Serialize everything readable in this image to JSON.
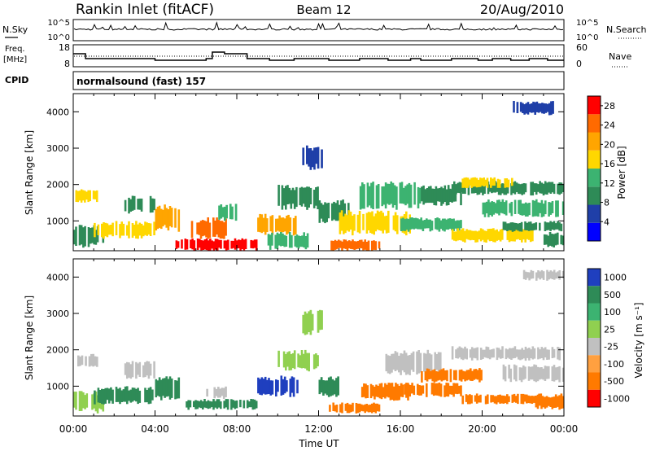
{
  "header": {
    "station": "Rankin Inlet (fitACF)",
    "beam": "Beam 12",
    "date": "20/Aug/2010"
  },
  "noise_panel": {
    "left_label": "N.Sky",
    "right_label": "N.Search",
    "left_ticks": [
      "10^5",
      "10^0"
    ],
    "right_ticks": [
      "10^5",
      "10^0"
    ]
  },
  "freq_panel": {
    "left_label_line1": "Freq.",
    "left_label_line2": "[MHz]",
    "right_label": "Nave",
    "left_ticks": [
      "18",
      "8"
    ],
    "right_ticks": [
      "60",
      "0"
    ]
  },
  "cpid": {
    "label": "CPID",
    "value": "normalsound (fast) 157"
  },
  "x_axis": {
    "label": "Time UT",
    "ticks": [
      "00:00",
      "04:00",
      "08:00",
      "12:00",
      "16:00",
      "20:00",
      "00:00"
    ]
  },
  "chart_data": [
    {
      "type": "heatmap",
      "name": "power",
      "ylabel": "Slant Range [km]",
      "yticks": [
        "1000",
        "2000",
        "3000",
        "4000"
      ],
      "ylim": [
        180,
        4500
      ],
      "xlim": [
        "00:00",
        "24:00"
      ],
      "colorbar_label": "Power [dB]",
      "colorbar_ticks": [
        "4",
        "8",
        "12",
        "16",
        "20",
        "24",
        "28"
      ],
      "colorbar_range": [
        0,
        30
      ],
      "colors": [
        "#0000ff",
        "#1f3fa8",
        "#2e8b57",
        "#3cb371",
        "#ffd700",
        "#ffa500",
        "#ff6a00",
        "#ff0000"
      ],
      "regions": [
        {
          "t0": 0.0,
          "t1": 1.5,
          "r0": 250,
          "r1": 900,
          "v": 10
        },
        {
          "t0": 0.1,
          "t1": 1.2,
          "r0": 1500,
          "r1": 1900,
          "v": 16
        },
        {
          "t0": 1.0,
          "t1": 4.0,
          "r0": 500,
          "r1": 1000,
          "v": 18
        },
        {
          "t0": 2.5,
          "t1": 4.0,
          "r0": 1200,
          "r1": 1700,
          "v": 10
        },
        {
          "t0": 4.0,
          "t1": 5.2,
          "r0": 700,
          "r1": 1500,
          "v": 20
        },
        {
          "t0": 5.0,
          "t1": 9.0,
          "r0": 180,
          "r1": 520,
          "v": 30
        },
        {
          "t0": 5.5,
          "t1": 7.5,
          "r0": 500,
          "r1": 1100,
          "v": 24
        },
        {
          "t0": 7.0,
          "t1": 8.0,
          "r0": 1000,
          "r1": 1500,
          "v": 14
        },
        {
          "t0": 9.0,
          "t1": 11.0,
          "r0": 600,
          "r1": 1200,
          "v": 22
        },
        {
          "t0": 9.5,
          "t1": 11.5,
          "r0": 200,
          "r1": 700,
          "v": 14
        },
        {
          "t0": 10.0,
          "t1": 12.0,
          "r0": 1300,
          "r1": 2000,
          "v": 8
        },
        {
          "t0": 11.2,
          "t1": 12.2,
          "r0": 2400,
          "r1": 3100,
          "v": 5
        },
        {
          "t0": 12.0,
          "t1": 13.5,
          "r0": 900,
          "r1": 1600,
          "v": 10
        },
        {
          "t0": 12.5,
          "t1": 15.0,
          "r0": 180,
          "r1": 500,
          "v": 26
        },
        {
          "t0": 13.0,
          "t1": 16.5,
          "r0": 600,
          "r1": 1300,
          "v": 16
        },
        {
          "t0": 14.0,
          "t1": 17.0,
          "r0": 1300,
          "r1": 2100,
          "v": 12
        },
        {
          "t0": 16.0,
          "t1": 19.0,
          "r0": 700,
          "r1": 1100,
          "v": 14
        },
        {
          "t0": 17.0,
          "t1": 19.0,
          "r0": 1400,
          "r1": 2000,
          "v": 9
        },
        {
          "t0": 18.5,
          "t1": 24.0,
          "r0": 1700,
          "r1": 2100,
          "v": 10
        },
        {
          "t0": 18.5,
          "t1": 22.5,
          "r0": 400,
          "r1": 800,
          "v": 18
        },
        {
          "t0": 19.0,
          "t1": 21.5,
          "r0": 1900,
          "r1": 2200,
          "v": 16
        },
        {
          "t0": 20.0,
          "t1": 24.0,
          "r0": 1100,
          "r1": 1600,
          "v": 13
        },
        {
          "t0": 21.0,
          "t1": 24.0,
          "r0": 700,
          "r1": 1000,
          "v": 8
        },
        {
          "t0": 21.5,
          "t1": 23.5,
          "r0": 3900,
          "r1": 4300,
          "v": 5
        },
        {
          "t0": 23.0,
          "t1": 24.0,
          "r0": 250,
          "r1": 700,
          "v": 11
        }
      ]
    },
    {
      "type": "heatmap",
      "name": "velocity",
      "ylabel": "Slant Range [km]",
      "yticks": [
        "1000",
        "2000",
        "3000",
        "4000"
      ],
      "ylim": [
        180,
        4500
      ],
      "xlim": [
        "00:00",
        "24:00"
      ],
      "colorbar_label": "Velocity [m s⁻¹]",
      "colorbar_ticks": [
        "1000",
        "500",
        "100",
        "25",
        "-25",
        "-100",
        "-500",
        "-1000"
      ],
      "colors": [
        "#1f3fbf",
        "#2e8b57",
        "#3cb371",
        "#90d050",
        "#c0c0c0",
        "#ffa040",
        "#ff7a00",
        "#ff0000"
      ],
      "regions": [
        {
          "t0": 0.0,
          "t1": 1.5,
          "r0": 250,
          "r1": 900,
          "v": 100
        },
        {
          "t0": 0.2,
          "t1": 1.2,
          "r0": 1500,
          "r1": 1900,
          "v": 0
        },
        {
          "t0": 1.0,
          "t1": 4.0,
          "r0": 500,
          "r1": 1000,
          "v": 300
        },
        {
          "t0": 2.5,
          "t1": 4.0,
          "r0": 1200,
          "r1": 1700,
          "v": 0
        },
        {
          "t0": 4.0,
          "t1": 5.2,
          "r0": 600,
          "r1": 1300,
          "v": 200
        },
        {
          "t0": 5.5,
          "t1": 9.0,
          "r0": 350,
          "r1": 650,
          "v": 400
        },
        {
          "t0": 6.5,
          "t1": 7.5,
          "r0": 650,
          "r1": 1000,
          "v": 0
        },
        {
          "t0": 9.0,
          "t1": 11.0,
          "r0": 700,
          "r1": 1300,
          "v": 800
        },
        {
          "t0": 10.0,
          "t1": 12.0,
          "r0": 1400,
          "r1": 2000,
          "v": 60
        },
        {
          "t0": 11.2,
          "t1": 12.2,
          "r0": 2400,
          "r1": 3100,
          "v": 60
        },
        {
          "t0": 12.0,
          "t1": 13.0,
          "r0": 700,
          "r1": 1300,
          "v": 500
        },
        {
          "t0": 12.5,
          "t1": 15.0,
          "r0": 250,
          "r1": 550,
          "v": -300
        },
        {
          "t0": 14.0,
          "t1": 16.5,
          "r0": 600,
          "r1": 1100,
          "v": -150
        },
        {
          "t0": 15.0,
          "t1": 18.0,
          "r0": 1300,
          "r1": 2000,
          "v": 0
        },
        {
          "t0": 16.0,
          "t1": 19.0,
          "r0": 700,
          "r1": 1100,
          "v": -200
        },
        {
          "t0": 17.0,
          "t1": 20.0,
          "r0": 1100,
          "r1": 1500,
          "v": -150
        },
        {
          "t0": 18.5,
          "t1": 24.0,
          "r0": 1700,
          "r1": 2100,
          "v": 0
        },
        {
          "t0": 19.0,
          "t1": 23.0,
          "r0": 500,
          "r1": 800,
          "v": -200
        },
        {
          "t0": 21.0,
          "t1": 24.0,
          "r0": 1100,
          "r1": 1600,
          "v": 0
        },
        {
          "t0": 22.0,
          "t1": 24.0,
          "r0": 3900,
          "r1": 4200,
          "v": 0
        },
        {
          "t0": 22.5,
          "t1": 24.0,
          "r0": 350,
          "r1": 800,
          "v": -200
        }
      ]
    }
  ]
}
